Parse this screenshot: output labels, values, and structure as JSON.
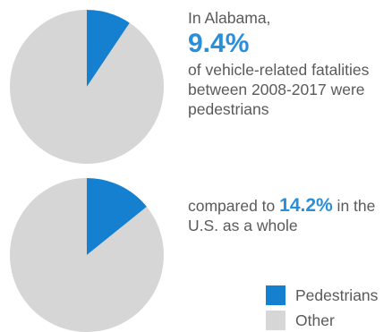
{
  "colors": {
    "pedestrians": "#1480cf",
    "other": "#d6d6d6",
    "accent_text": "#2a8fd8"
  },
  "text1": {
    "line1": "In Alabama,",
    "big": "9.4%",
    "rest": "of vehicle-related fatalities between 2008-2017 were pedestrians"
  },
  "text2": {
    "before": "compared to ",
    "pct": "14.2%",
    "after": " in the U.S. as a whole"
  },
  "legend": [
    {
      "label": "Pedestrians",
      "color": "#1480cf"
    },
    {
      "label": "Other",
      "color": "#d6d6d6"
    }
  ],
  "chart_data": [
    {
      "type": "pie",
      "categories": [
        "Pedestrians",
        "Other"
      ],
      "values": [
        9.4,
        90.6
      ]
    },
    {
      "type": "pie",
      "categories": [
        "Pedestrians",
        "Other"
      ],
      "values": [
        14.2,
        85.8
      ]
    }
  ]
}
